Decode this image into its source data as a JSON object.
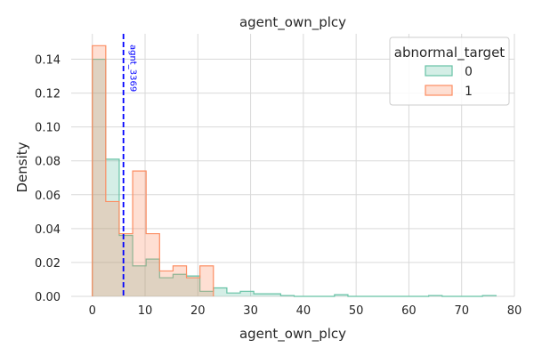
{
  "chart_data": {
    "type": "histogram-step",
    "title": "agent_own_plcy",
    "xlabel": "agent_own_plcy",
    "ylabel": "Density",
    "xlim": [
      -4,
      80
    ],
    "ylim": [
      0,
      0.155
    ],
    "x_ticks": [
      0,
      10,
      20,
      30,
      40,
      50,
      60,
      70,
      80
    ],
    "y_ticks": [
      0.0,
      0.02,
      0.04,
      0.06,
      0.08,
      0.1,
      0.12,
      0.14
    ],
    "y_tick_labels": [
      "0.00",
      "0.02",
      "0.04",
      "0.06",
      "0.08",
      "0.10",
      "0.12",
      "0.14"
    ],
    "grid": true,
    "legend": {
      "title": "abnormal_target",
      "placement": "top-right"
    },
    "bin_width": 2.55,
    "bin_start": 0,
    "series": [
      {
        "name": "0",
        "edge_color": "#66c2a5",
        "fill_color": "rgba(102,194,165,0.28)",
        "values": [
          0.14,
          0.081,
          0.036,
          0.018,
          0.022,
          0.011,
          0.013,
          0.012,
          0.003,
          0.005,
          0.002,
          0.003,
          0.0015,
          0.0015,
          0.0005,
          0,
          0,
          0,
          0.001,
          0,
          0,
          0,
          0,
          0,
          0,
          0.0005,
          0,
          0,
          0,
          0.0005
        ]
      },
      {
        "name": "1",
        "edge_color": "#fc8d62",
        "fill_color": "rgba(252,141,98,0.28)",
        "values": [
          0.148,
          0.056,
          0.037,
          0.074,
          0.037,
          0.015,
          0.018,
          0.011,
          0.018
        ]
      }
    ],
    "annotations": [
      {
        "type": "vline",
        "x": 5.9,
        "label": "agnt_3369",
        "color": "#0000ff",
        "style": "dashed"
      }
    ]
  }
}
